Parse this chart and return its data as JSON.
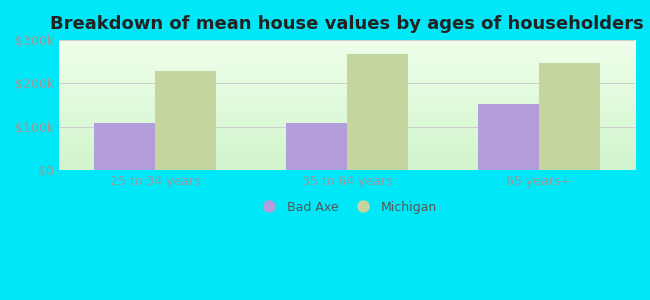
{
  "title": "Breakdown of mean house values by ages of householders",
  "categories": [
    "25 to 34 years",
    "35 to 64 years",
    "65 years+"
  ],
  "bad_axe_values": [
    110000,
    110000,
    152000
  ],
  "michigan_values": [
    228000,
    268000,
    248000
  ],
  "ylim": [
    0,
    300000
  ],
  "yticks": [
    0,
    100000,
    200000,
    300000
  ],
  "ytick_labels": [
    "$0",
    "$100k",
    "$200k",
    "$300k"
  ],
  "bar_color_bad_axe": "#b39ddb",
  "bar_color_michigan": "#c5d5a0",
  "background_outer": "#00e8f8",
  "title_fontsize": 13,
  "tick_fontsize": 9,
  "tick_color": "#999999",
  "legend_label_bad_axe": "Bad Axe",
  "legend_label_michigan": "Michigan",
  "bar_width": 0.32,
  "grid_color": "#cccccc",
  "bg_top": "#f0faf0",
  "bg_bottom": "#d8f0d0"
}
